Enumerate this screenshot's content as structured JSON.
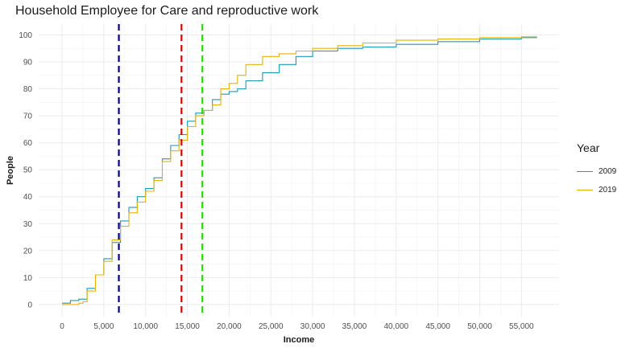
{
  "chart_data": {
    "type": "line",
    "title": "Household Employee for Care and reproductive work",
    "xlabel": "Income",
    "ylabel": "People",
    "xlim": [
      -2800,
      59500
    ],
    "ylim": [
      -4.5,
      104
    ],
    "x_ticks": [
      0,
      5000,
      10000,
      15000,
      20000,
      25000,
      30000,
      35000,
      40000,
      45000,
      50000,
      55000
    ],
    "x_tick_labels": [
      "0",
      "5,000",
      "10,000",
      "15,000",
      "20,000",
      "25,000",
      "30,000",
      "35,000",
      "40,000",
      "45,000",
      "50,000",
      "55,000"
    ],
    "y_ticks": [
      0,
      10,
      20,
      30,
      40,
      50,
      60,
      70,
      80,
      90,
      100
    ],
    "y_tick_labels": [
      "0",
      "10",
      "20",
      "30",
      "40",
      "50",
      "60",
      "70",
      "80",
      "90",
      "100"
    ],
    "grid": true,
    "legend": {
      "title": "Year",
      "position": "right"
    },
    "series": [
      {
        "name": "2009",
        "color": "#1a9bb8",
        "x": [
          0,
          1000,
          2000,
          3000,
          4000,
          5000,
          6000,
          7000,
          8000,
          9000,
          10000,
          11000,
          12000,
          13000,
          14000,
          15000,
          16000,
          17000,
          18000,
          19000,
          20000,
          21000,
          22000,
          24000,
          26000,
          28000,
          30000,
          33000,
          36000,
          40000,
          45000,
          50000,
          55000,
          56800
        ],
        "y": [
          0.5,
          1.5,
          2,
          6,
          11,
          17,
          23,
          31,
          36,
          40,
          43,
          47,
          54,
          59,
          63,
          68,
          71,
          72,
          76,
          78,
          79,
          80,
          83,
          86,
          89,
          92,
          94,
          95,
          95.5,
          96.5,
          97.5,
          98.5,
          99,
          99.3
        ]
      },
      {
        "name": "2019",
        "color": "#e8b106",
        "x": [
          0,
          1000,
          2000,
          2500,
          3000,
          4000,
          5000,
          6000,
          7000,
          8000,
          9000,
          10000,
          11000,
          12000,
          13000,
          14000,
          15000,
          16000,
          17000,
          18000,
          19000,
          20000,
          21000,
          22000,
          24000,
          26000,
          28000,
          30000,
          33000,
          36000,
          40000,
          45000,
          50000,
          55000,
          56800
        ],
        "y": [
          0,
          0,
          0.5,
          1,
          5,
          11,
          16,
          24,
          29,
          34,
          38,
          42,
          46,
          53,
          57,
          61,
          66,
          70,
          72,
          74,
          80,
          82,
          85,
          89,
          92,
          93,
          94,
          95,
          96,
          97,
          98,
          98.5,
          99,
          99.3,
          99.5
        ]
      }
    ],
    "reference_lines": [
      {
        "x": 6800,
        "color": "#00008b"
      },
      {
        "x": 14300,
        "color": "#dd0000"
      },
      {
        "x": 16800,
        "color": "#22dd00"
      }
    ]
  }
}
